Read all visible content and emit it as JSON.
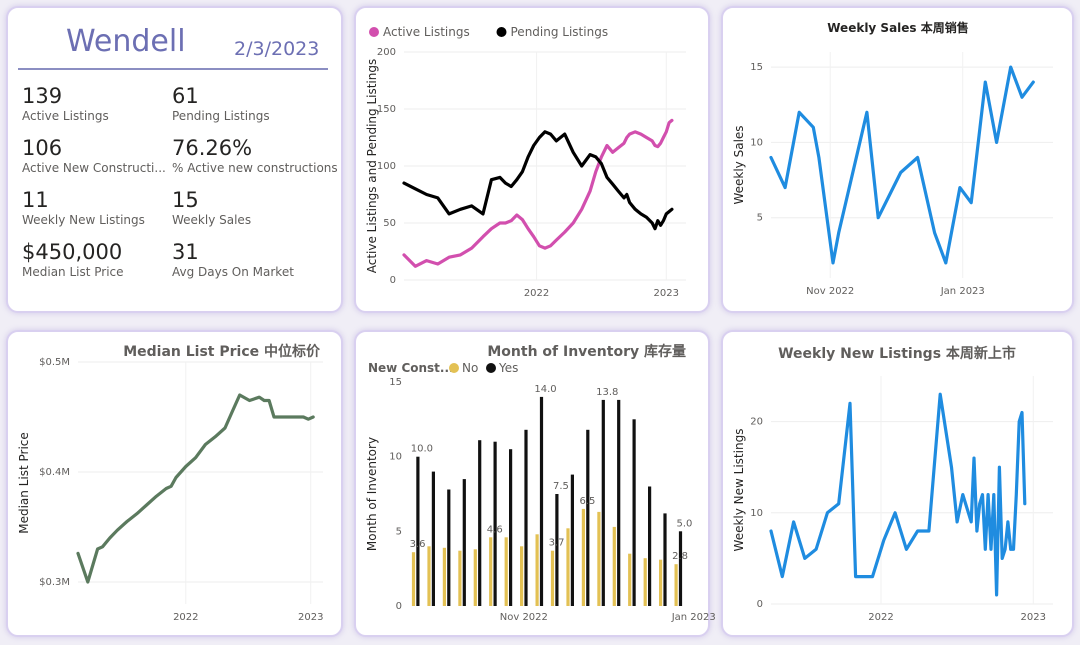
{
  "kpi": {
    "city": "Wendell",
    "date": "2/3/2023",
    "items": [
      {
        "value": "139",
        "label": "Active Listings"
      },
      {
        "value": "61",
        "label": "Pending Listings"
      },
      {
        "value": "106",
        "label": "Active New Constructi..."
      },
      {
        "value": "76.26%",
        "label": "% Active new constructions"
      },
      {
        "value": "11",
        "label": "Weekly New Listings"
      },
      {
        "value": "15",
        "label": "Weekly Sales"
      },
      {
        "value": "$450,000",
        "label": "Median List Price"
      },
      {
        "value": "31",
        "label": "Avg Days On Market"
      }
    ]
  },
  "chart_data": [
    {
      "id": "listings",
      "type": "line",
      "title": "",
      "ylabel": "Active Listings and Pending Listings",
      "xlabel": "",
      "ylim": [
        0,
        200
      ],
      "yticks": [
        0,
        50,
        100,
        150,
        200
      ],
      "xlim": [
        0,
        100
      ],
      "xticks": [
        {
          "x": 47,
          "label": "2022"
        },
        {
          "x": 93,
          "label": "2023"
        }
      ],
      "legend": "top-left",
      "series": [
        {
          "name": "Active Listings",
          "color": "#d24fae",
          "x": [
            0,
            4,
            8,
            12,
            16,
            20,
            24,
            28,
            31,
            34,
            36,
            38,
            40,
            42,
            44,
            46,
            48,
            50,
            52,
            54,
            57,
            60,
            63,
            66,
            68,
            70,
            72,
            74,
            76,
            78,
            79,
            80,
            82,
            84,
            86,
            88,
            89,
            90,
            91,
            92,
            93,
            94,
            95
          ],
          "y": [
            22,
            12,
            17,
            14,
            20,
            22,
            28,
            38,
            45,
            50,
            50,
            52,
            57,
            53,
            45,
            38,
            30,
            28,
            30,
            35,
            42,
            50,
            62,
            78,
            95,
            108,
            118,
            112,
            116,
            120,
            125,
            128,
            130,
            128,
            125,
            122,
            118,
            117,
            120,
            125,
            130,
            138,
            140
          ]
        },
        {
          "name": "Pending Listings",
          "color": "#000000",
          "x": [
            0,
            4,
            8,
            12,
            16,
            20,
            24,
            28,
            31,
            34,
            36,
            38,
            40,
            42,
            44,
            46,
            48,
            50,
            52,
            54,
            57,
            60,
            63,
            66,
            68,
            70,
            72,
            74,
            76,
            78,
            79,
            80,
            82,
            84,
            86,
            88,
            89,
            90,
            91,
            92,
            93,
            94,
            95
          ],
          "y": [
            85,
            80,
            75,
            72,
            58,
            62,
            65,
            58,
            88,
            90,
            85,
            82,
            88,
            95,
            108,
            118,
            125,
            130,
            128,
            122,
            128,
            112,
            100,
            110,
            108,
            102,
            90,
            84,
            78,
            72,
            75,
            68,
            62,
            58,
            55,
            50,
            45,
            52,
            48,
            52,
            58,
            60,
            62
          ]
        }
      ]
    },
    {
      "id": "sales",
      "type": "line",
      "title": "Weekly Sales 本周销售",
      "ylabel": "Weekly Sales",
      "xlabel": "",
      "ylim": [
        1,
        16
      ],
      "yticks": [
        5,
        10,
        15
      ],
      "xlim": [
        0,
        100
      ],
      "xticks": [
        {
          "x": 21,
          "label": "Nov 2022"
        },
        {
          "x": 68,
          "label": "Jan 2023"
        }
      ],
      "series": [
        {
          "name": "Weekly Sales",
          "color": "#1f8ce0",
          "x": [
            0,
            5,
            10,
            15,
            17,
            22,
            24,
            34,
            38,
            46,
            52,
            58,
            62,
            67,
            71,
            76,
            80,
            85,
            89,
            93
          ],
          "y": [
            9,
            7,
            12,
            11,
            9,
            2,
            4,
            12,
            5,
            8,
            9,
            4,
            2,
            7,
            6,
            14,
            10,
            15,
            13,
            14
          ]
        }
      ]
    },
    {
      "id": "median",
      "type": "line",
      "title": "Median List Price  中位标价",
      "ylabel": "Median List Price",
      "xlabel": "",
      "ylim": [
        0.28,
        0.5
      ],
      "yticks": [
        {
          "v": 0.3,
          "label": "$0.3M"
        },
        {
          "v": 0.4,
          "label": "$0.4M"
        },
        {
          "v": 0.5,
          "label": "$0.5M"
        }
      ],
      "xlim": [
        0,
        100
      ],
      "xticks": [
        {
          "x": 44,
          "label": "2022"
        },
        {
          "x": 95,
          "label": "2023"
        }
      ],
      "series": [
        {
          "name": "Median List Price",
          "color": "#5b7a5e",
          "x": [
            0,
            4,
            8,
            10,
            13,
            16,
            20,
            24,
            28,
            32,
            36,
            38,
            40,
            44,
            48,
            52,
            56,
            60,
            63,
            66,
            70,
            74,
            76,
            78,
            80,
            84,
            88,
            92,
            94,
            96
          ],
          "y": [
            0.326,
            0.3,
            0.33,
            0.332,
            0.34,
            0.347,
            0.355,
            0.362,
            0.37,
            0.378,
            0.385,
            0.387,
            0.395,
            0.405,
            0.413,
            0.425,
            0.432,
            0.44,
            0.455,
            0.47,
            0.465,
            0.468,
            0.465,
            0.465,
            0.45,
            0.45,
            0.45,
            0.45,
            0.448,
            0.45
          ]
        }
      ]
    },
    {
      "id": "inventory",
      "type": "bar",
      "title": "Month of Inventory 库存量",
      "ylabel": "Month of Inventory",
      "xlabel": "",
      "ylim": [
        0,
        15
      ],
      "yticks": [
        0,
        5,
        10,
        15
      ],
      "legend": {
        "title": "New Const...",
        "entries": [
          {
            "name": "No",
            "color": "#e3c154"
          },
          {
            "name": "Yes",
            "color": "#111111"
          }
        ]
      },
      "xticks": [
        {
          "i": 7,
          "label": "Nov 2022"
        },
        {
          "i": 18,
          "label": "Jan 2023"
        }
      ],
      "series": [
        {
          "name": "No",
          "color": "#e3c154",
          "values": [
            3.6,
            4.0,
            3.9,
            3.7,
            3.8,
            4.6,
            4.6,
            4.0,
            4.8,
            3.7,
            5.2,
            6.5,
            6.3,
            5.3,
            3.5,
            3.2,
            3.1,
            2.8
          ]
        },
        {
          "name": "Yes",
          "color": "#111111",
          "values": [
            10.0,
            9.0,
            7.8,
            8.5,
            11.1,
            11.0,
            10.5,
            11.8,
            14.0,
            7.5,
            8.8,
            11.8,
            13.8,
            13.8,
            12.5,
            8.0,
            6.2,
            5.0
          ]
        }
      ],
      "data_labels": [
        {
          "i": 0,
          "series": "Yes",
          "text": "10.0"
        },
        {
          "i": 0,
          "series": "No",
          "text": "3.6"
        },
        {
          "i": 5,
          "series": "No",
          "text": "4.6"
        },
        {
          "i": 8,
          "series": "Yes",
          "text": "14.0"
        },
        {
          "i": 9,
          "series": "Yes",
          "text": "7.5"
        },
        {
          "i": 9,
          "series": "No",
          "text": "3.7"
        },
        {
          "i": 11,
          "series": "No",
          "text": "6.5"
        },
        {
          "i": 12,
          "series": "Yes",
          "text": "13.8"
        },
        {
          "i": 17,
          "series": "Yes",
          "text": "5.0"
        },
        {
          "i": 17,
          "series": "No",
          "text": "2.8"
        }
      ]
    },
    {
      "id": "newlistings",
      "type": "line",
      "title": "Weekly New Listings  本周新上市",
      "ylabel": "Weekly New Listings",
      "xlabel": "",
      "ylim": [
        0,
        25
      ],
      "yticks": [
        0,
        10,
        20
      ],
      "xlim": [
        0,
        100
      ],
      "xticks": [
        {
          "x": 39,
          "label": "2022"
        },
        {
          "x": 93,
          "label": "2023"
        }
      ],
      "series": [
        {
          "name": "Weekly New Listings",
          "color": "#1f8ce0",
          "x": [
            0,
            4,
            8,
            12,
            16,
            20,
            24,
            28,
            30,
            36,
            40,
            44,
            48,
            52,
            56,
            60,
            64,
            66,
            68,
            71,
            72,
            73,
            74,
            75,
            76,
            77,
            78,
            79,
            80,
            81,
            82,
            83,
            84,
            85,
            86,
            87,
            88,
            89,
            90
          ],
          "y": [
            8,
            3,
            9,
            5,
            6,
            10,
            11,
            22,
            3,
            3,
            7,
            10,
            6,
            8,
            8,
            23,
            15,
            9,
            12,
            9,
            16,
            8,
            11,
            12,
            6,
            12,
            6,
            12,
            1,
            15,
            5,
            6,
            9,
            6,
            6,
            12,
            20,
            21,
            11
          ]
        }
      ]
    }
  ]
}
